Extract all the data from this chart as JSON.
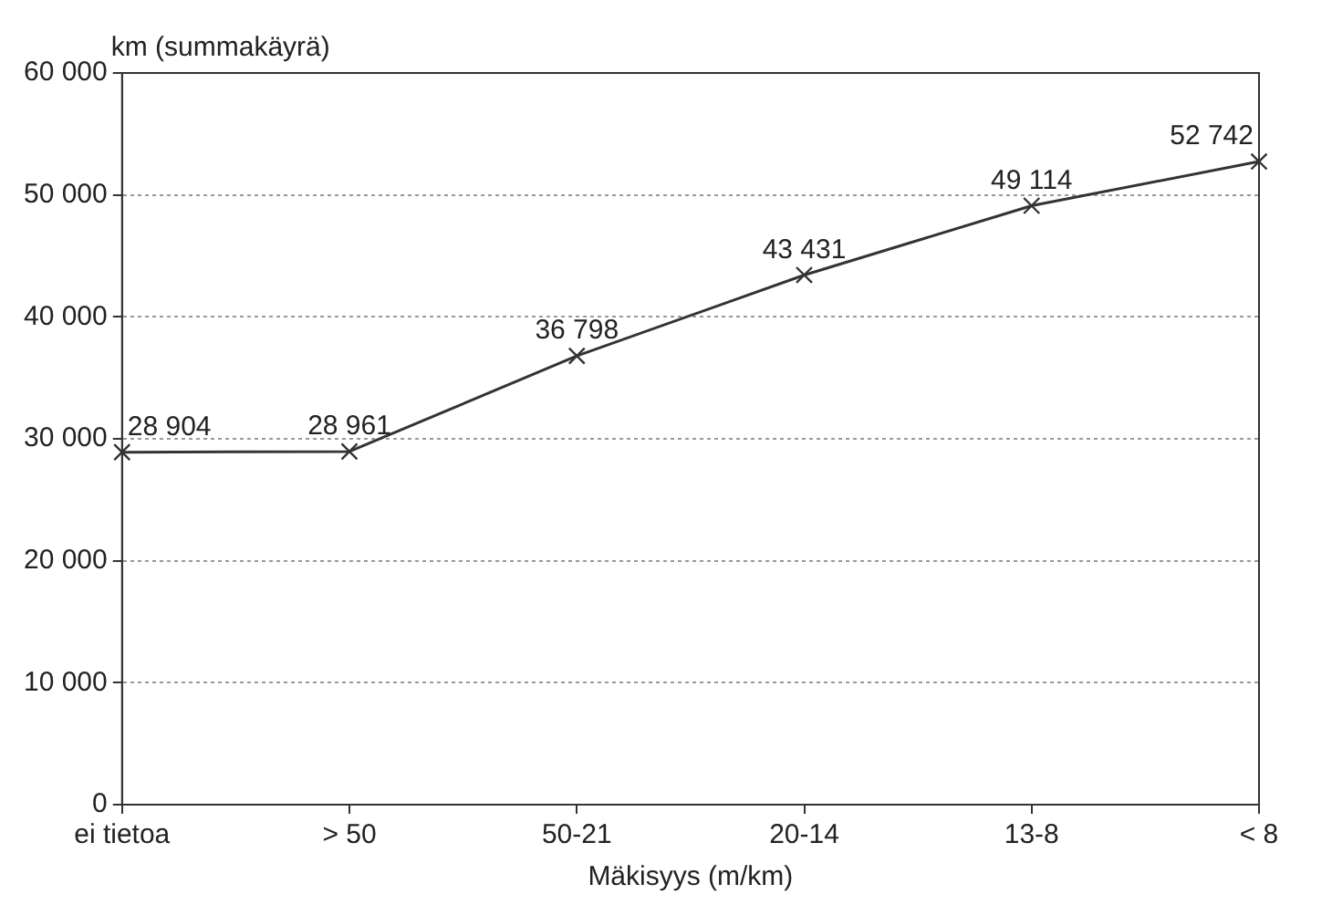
{
  "chart_data": {
    "type": "line",
    "ylabel": "km (summakäyrä)",
    "xlabel": "Mäkisyys (m/km)",
    "categories": [
      "ei tietoa",
      "> 50",
      "50-21",
      "20-14",
      "13-8",
      "< 8"
    ],
    "series": [
      {
        "color": "#333333",
        "values": [
          28904,
          28961,
          36798,
          43431,
          49114,
          52742
        ],
        "value_labels": [
          "28 904",
          "28 961",
          "36 798",
          "43 431",
          "49 114",
          "52 742"
        ]
      }
    ],
    "ylim": [
      0,
      60000
    ],
    "yticks": [
      {
        "value": 0,
        "label": "0"
      },
      {
        "value": 10000,
        "label": "10 000"
      },
      {
        "value": 20000,
        "label": "20 000"
      },
      {
        "value": 30000,
        "label": "30 000"
      },
      {
        "value": 40000,
        "label": "40 000"
      },
      {
        "value": 50000,
        "label": "50 000"
      },
      {
        "value": 60000,
        "label": "60 000"
      }
    ],
    "grid": "y",
    "marker": "cross",
    "line_style": "solid",
    "legend": false
  }
}
